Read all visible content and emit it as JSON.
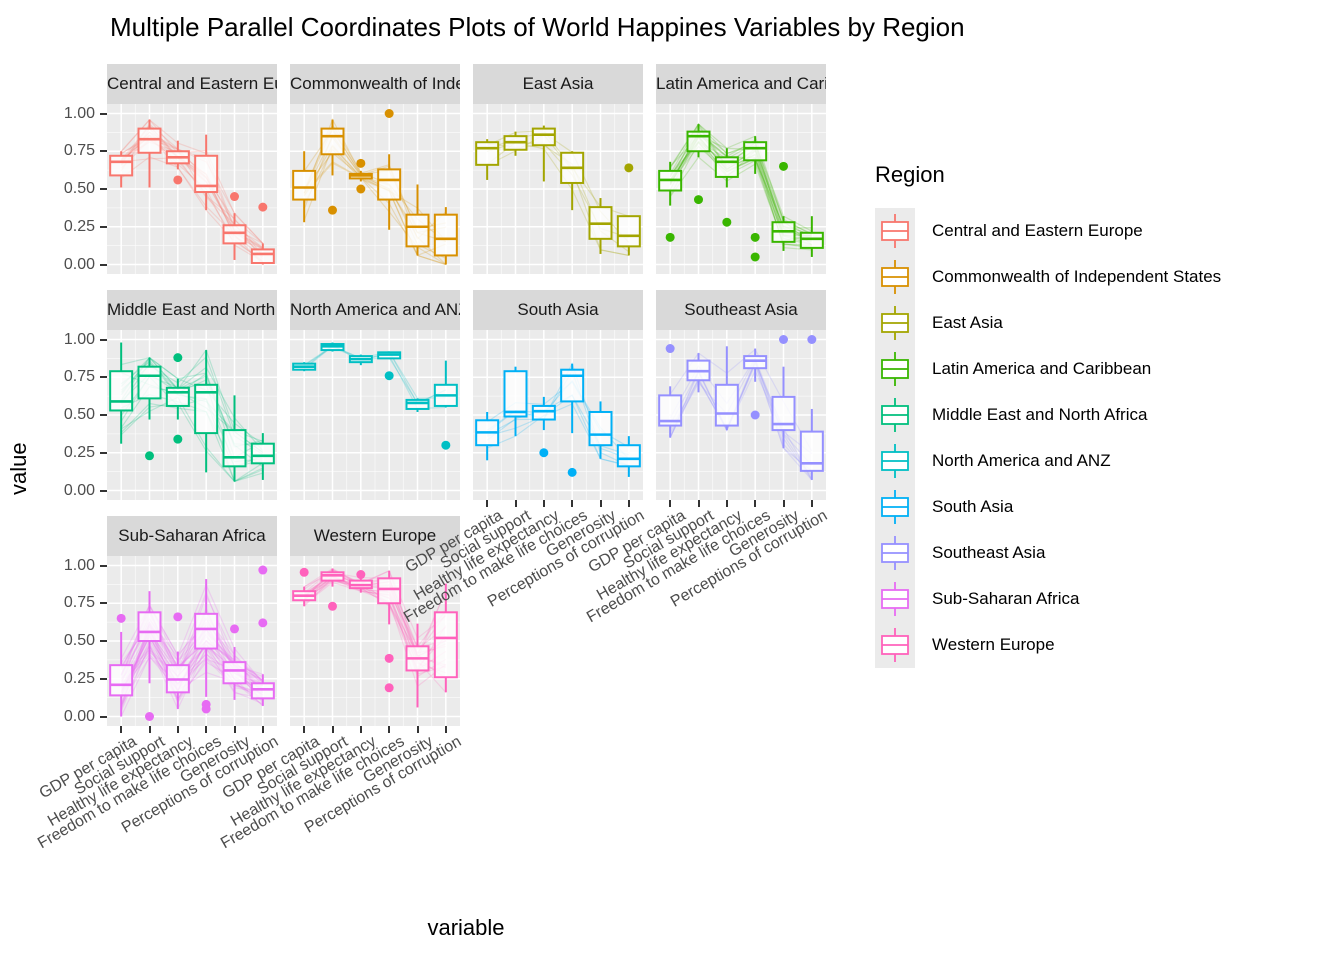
{
  "title": "Multiple Parallel Coordinates Plots of World Happines Variables by Region",
  "axes": {
    "x_title": "variable",
    "y_title": "value",
    "y_ticks": [
      {
        "label": "1.00",
        "value": 1.0
      },
      {
        "label": "0.75",
        "value": 0.75
      },
      {
        "label": "0.50",
        "value": 0.5
      },
      {
        "label": "0.25",
        "value": 0.25
      },
      {
        "label": "0.00",
        "value": 0.0
      }
    ]
  },
  "legend": {
    "title": "Region",
    "entries": [
      {
        "label": "Central and Eastern Europe",
        "color": "#F8766D"
      },
      {
        "label": "Commonwealth of Independent States",
        "color": "#D89000"
      },
      {
        "label": "East Asia",
        "color": "#A3A500"
      },
      {
        "label": "Latin America and Caribbean",
        "color": "#39B600"
      },
      {
        "label": "Middle East and North Africa",
        "color": "#00BF7D"
      },
      {
        "label": "North America and ANZ",
        "color": "#00BFC4"
      },
      {
        "label": "South Asia",
        "color": "#00B0F6"
      },
      {
        "label": "Southeast Asia",
        "color": "#9590FF"
      },
      {
        "label": "Sub-Saharan Africa",
        "color": "#E76BF3"
      },
      {
        "label": "Western Europe",
        "color": "#FF62BC"
      }
    ]
  },
  "style": {
    "panel_bg": "#EBEBEB",
    "strip_bg": "#D9D9D9",
    "grid_color": "#FFFFFF",
    "tick_color": "#333333",
    "tick_label_color": "#4D4D4D"
  },
  "chart_data": {
    "type": "bar",
    "subtype": "faceted-boxplots-with-parallel-coordinate-lines",
    "ylim": [
      0,
      1
    ],
    "variables": [
      "GDP per capita",
      "Social support",
      "Healthy life expectancy",
      "Freedom to make life choices",
      "Generosity",
      "Perceptions of corruption"
    ],
    "facets": [
      {
        "region": "Central and Eastern Europe",
        "color": "#F8766D",
        "row": 0,
        "col": 0,
        "line_count": 17,
        "boxes": [
          {
            "var": "GDP per capita",
            "w_lo": 0.51,
            "q1": 0.59,
            "med": 0.68,
            "q3": 0.72,
            "w_hi": 0.75,
            "outliers": []
          },
          {
            "var": "Social support",
            "w_lo": 0.51,
            "q1": 0.74,
            "med": 0.83,
            "q3": 0.9,
            "w_hi": 0.96,
            "outliers": []
          },
          {
            "var": "Healthy life expectancy",
            "w_lo": 0.63,
            "q1": 0.67,
            "med": 0.71,
            "q3": 0.75,
            "w_hi": 0.82,
            "outliers": [
              0.56
            ]
          },
          {
            "var": "Freedom to make life choices",
            "w_lo": 0.36,
            "q1": 0.48,
            "med": 0.52,
            "q3": 0.72,
            "w_hi": 0.86,
            "outliers": []
          },
          {
            "var": "Generosity",
            "w_lo": 0.03,
            "q1": 0.14,
            "med": 0.21,
            "q3": 0.26,
            "w_hi": 0.34,
            "outliers": [
              0.45
            ]
          },
          {
            "var": "Perceptions of corruption",
            "w_lo": 0.0,
            "q1": 0.01,
            "med": 0.07,
            "q3": 0.1,
            "w_hi": 0.14,
            "outliers": [
              0.38
            ]
          }
        ]
      },
      {
        "region": "Commonwealth of Independent States",
        "color": "#D89000",
        "row": 0,
        "col": 1,
        "line_count": 12,
        "boxes": [
          {
            "var": "GDP per capita",
            "w_lo": 0.28,
            "q1": 0.43,
            "med": 0.51,
            "q3": 0.62,
            "w_hi": 0.75,
            "outliers": []
          },
          {
            "var": "Social support",
            "w_lo": 0.59,
            "q1": 0.73,
            "med": 0.85,
            "q3": 0.9,
            "w_hi": 0.96,
            "outliers": [
              0.36
            ]
          },
          {
            "var": "Healthy life expectancy",
            "w_lo": 0.55,
            "q1": 0.57,
            "med": 0.59,
            "q3": 0.6,
            "w_hi": 0.62,
            "outliers": [
              0.67,
              0.5
            ]
          },
          {
            "var": "Freedom to make life choices",
            "w_lo": 0.23,
            "q1": 0.43,
            "med": 0.56,
            "q3": 0.63,
            "w_hi": 0.73,
            "outliers": [
              1.0
            ]
          },
          {
            "var": "Generosity",
            "w_lo": 0.06,
            "q1": 0.12,
            "med": 0.25,
            "q3": 0.33,
            "w_hi": 0.53,
            "outliers": []
          },
          {
            "var": "Perceptions of corruption",
            "w_lo": 0.0,
            "q1": 0.06,
            "med": 0.17,
            "q3": 0.33,
            "w_hi": 0.38,
            "outliers": []
          }
        ]
      },
      {
        "region": "East Asia",
        "color": "#A3A500",
        "row": 0,
        "col": 2,
        "line_count": 6,
        "boxes": [
          {
            "var": "GDP per capita",
            "w_lo": 0.56,
            "q1": 0.66,
            "med": 0.77,
            "q3": 0.81,
            "w_hi": 0.83,
            "outliers": []
          },
          {
            "var": "Social support",
            "w_lo": 0.72,
            "q1": 0.76,
            "med": 0.81,
            "q3": 0.85,
            "w_hi": 0.88,
            "outliers": []
          },
          {
            "var": "Healthy life expectancy",
            "w_lo": 0.55,
            "q1": 0.79,
            "med": 0.86,
            "q3": 0.9,
            "w_hi": 0.92,
            "outliers": []
          },
          {
            "var": "Freedom to make life choices",
            "w_lo": 0.36,
            "q1": 0.54,
            "med": 0.64,
            "q3": 0.74,
            "w_hi": 0.75,
            "outliers": []
          },
          {
            "var": "Generosity",
            "w_lo": 0.07,
            "q1": 0.17,
            "med": 0.27,
            "q3": 0.38,
            "w_hi": 0.44,
            "outliers": []
          },
          {
            "var": "Perceptions of corruption",
            "w_lo": 0.06,
            "q1": 0.12,
            "med": 0.19,
            "q3": 0.32,
            "w_hi": 0.32,
            "outliers": [
              0.64
            ]
          }
        ]
      },
      {
        "region": "Latin America and Caribbean",
        "color": "#39B600",
        "row": 0,
        "col": 3,
        "line_count": 20,
        "boxes": [
          {
            "var": "GDP per capita",
            "w_lo": 0.39,
            "q1": 0.49,
            "med": 0.56,
            "q3": 0.62,
            "w_hi": 0.68,
            "outliers": [
              0.18
            ]
          },
          {
            "var": "Social support",
            "w_lo": 0.71,
            "q1": 0.75,
            "med": 0.85,
            "q3": 0.88,
            "w_hi": 0.93,
            "outliers": [
              0.43
            ]
          },
          {
            "var": "Healthy life expectancy",
            "w_lo": 0.51,
            "q1": 0.58,
            "med": 0.68,
            "q3": 0.71,
            "w_hi": 0.77,
            "outliers": [
              0.28
            ]
          },
          {
            "var": "Freedom to make life choices",
            "w_lo": 0.6,
            "q1": 0.69,
            "med": 0.77,
            "q3": 0.81,
            "w_hi": 0.85,
            "outliers": [
              0.18,
              0.05
            ]
          },
          {
            "var": "Generosity",
            "w_lo": 0.09,
            "q1": 0.15,
            "med": 0.22,
            "q3": 0.28,
            "w_hi": 0.32,
            "outliers": [
              0.65
            ]
          },
          {
            "var": "Perceptions of corruption",
            "w_lo": 0.05,
            "q1": 0.11,
            "med": 0.17,
            "q3": 0.21,
            "w_hi": 0.32,
            "outliers": []
          }
        ]
      },
      {
        "region": "Middle East and North Africa",
        "color": "#00BF7D",
        "row": 1,
        "col": 0,
        "line_count": 17,
        "boxes": [
          {
            "var": "GDP per capita",
            "w_lo": 0.31,
            "q1": 0.53,
            "med": 0.59,
            "q3": 0.79,
            "w_hi": 0.98,
            "outliers": []
          },
          {
            "var": "Social support",
            "w_lo": 0.47,
            "q1": 0.61,
            "med": 0.76,
            "q3": 0.82,
            "w_hi": 0.88,
            "outliers": [
              0.23
            ]
          },
          {
            "var": "Healthy life expectancy",
            "w_lo": 0.47,
            "q1": 0.56,
            "med": 0.65,
            "q3": 0.68,
            "w_hi": 0.74,
            "outliers": [
              0.88,
              0.34
            ]
          },
          {
            "var": "Freedom to make life choices",
            "w_lo": 0.12,
            "q1": 0.38,
            "med": 0.65,
            "q3": 0.7,
            "w_hi": 0.93,
            "outliers": []
          },
          {
            "var": "Generosity",
            "w_lo": 0.06,
            "q1": 0.16,
            "med": 0.22,
            "q3": 0.4,
            "w_hi": 0.63,
            "outliers": []
          },
          {
            "var": "Perceptions of corruption",
            "w_lo": 0.07,
            "q1": 0.18,
            "med": 0.23,
            "q3": 0.31,
            "w_hi": 0.38,
            "outliers": []
          }
        ]
      },
      {
        "region": "North America and ANZ",
        "color": "#00BFC4",
        "row": 1,
        "col": 1,
        "line_count": 4,
        "boxes": [
          {
            "var": "GDP per capita",
            "w_lo": 0.79,
            "q1": 0.8,
            "med": 0.82,
            "q3": 0.84,
            "w_hi": 0.85,
            "outliers": []
          },
          {
            "var": "Social support",
            "w_lo": 0.92,
            "q1": 0.93,
            "med": 0.955,
            "q3": 0.97,
            "w_hi": 0.98,
            "outliers": []
          },
          {
            "var": "Healthy life expectancy",
            "w_lo": 0.83,
            "q1": 0.85,
            "med": 0.87,
            "q3": 0.89,
            "w_hi": 0.9,
            "outliers": []
          },
          {
            "var": "Freedom to make life choices",
            "w_lo": 0.87,
            "q1": 0.875,
            "med": 0.9,
            "q3": 0.915,
            "w_hi": 0.92,
            "outliers": [
              0.76
            ]
          },
          {
            "var": "Generosity",
            "w_lo": 0.52,
            "q1": 0.54,
            "med": 0.58,
            "q3": 0.6,
            "w_hi": 0.61,
            "outliers": []
          },
          {
            "var": "Perceptions of corruption",
            "w_lo": 0.55,
            "q1": 0.56,
            "med": 0.63,
            "q3": 0.7,
            "w_hi": 0.86,
            "outliers": [
              0.3
            ]
          }
        ]
      },
      {
        "region": "South Asia",
        "color": "#00B0F6",
        "row": 1,
        "col": 2,
        "line_count": 7,
        "boxes": [
          {
            "var": "GDP per capita",
            "w_lo": 0.2,
            "q1": 0.3,
            "med": 0.385,
            "q3": 0.465,
            "w_hi": 0.52,
            "outliers": []
          },
          {
            "var": "Social support",
            "w_lo": 0.36,
            "q1": 0.49,
            "med": 0.52,
            "q3": 0.79,
            "w_hi": 0.82,
            "outliers": []
          },
          {
            "var": "Healthy life expectancy",
            "w_lo": 0.4,
            "q1": 0.47,
            "med": 0.525,
            "q3": 0.56,
            "w_hi": 0.62,
            "outliers": [
              0.25
            ]
          },
          {
            "var": "Freedom to make life choices",
            "w_lo": 0.38,
            "q1": 0.59,
            "med": 0.76,
            "q3": 0.8,
            "w_hi": 0.84,
            "outliers": [
              0.12
            ]
          },
          {
            "var": "Generosity",
            "w_lo": 0.21,
            "q1": 0.3,
            "med": 0.37,
            "q3": 0.52,
            "w_hi": 0.59,
            "outliers": []
          },
          {
            "var": "Perceptions of corruption",
            "w_lo": 0.09,
            "q1": 0.16,
            "med": 0.21,
            "q3": 0.3,
            "w_hi": 0.36,
            "outliers": []
          }
        ]
      },
      {
        "region": "Southeast Asia",
        "color": "#9590FF",
        "row": 1,
        "col": 3,
        "line_count": 9,
        "boxes": [
          {
            "var": "GDP per capita",
            "w_lo": 0.35,
            "q1": 0.43,
            "med": 0.46,
            "q3": 0.63,
            "w_hi": 0.69,
            "outliers": [
              0.94
            ]
          },
          {
            "var": "Social support",
            "w_lo": 0.65,
            "q1": 0.73,
            "med": 0.79,
            "q3": 0.86,
            "w_hi": 0.91,
            "outliers": []
          },
          {
            "var": "Healthy life expectancy",
            "w_lo": 0.4,
            "q1": 0.43,
            "med": 0.51,
            "q3": 0.7,
            "w_hi": 0.955,
            "outliers": []
          },
          {
            "var": "Freedom to make life choices",
            "w_lo": 0.72,
            "q1": 0.81,
            "med": 0.86,
            "q3": 0.89,
            "w_hi": 0.94,
            "outliers": [
              0.5
            ]
          },
          {
            "var": "Generosity",
            "w_lo": 0.28,
            "q1": 0.4,
            "med": 0.44,
            "q3": 0.62,
            "w_hi": 0.82,
            "outliers": [
              1.0
            ]
          },
          {
            "var": "Perceptions of corruption",
            "w_lo": 0.07,
            "q1": 0.13,
            "med": 0.18,
            "q3": 0.39,
            "w_hi": 0.54,
            "outliers": [
              1.0
            ]
          }
        ]
      },
      {
        "region": "Sub-Saharan Africa",
        "color": "#E76BF3",
        "row": 2,
        "col": 0,
        "line_count": 36,
        "boxes": [
          {
            "var": "GDP per capita",
            "w_lo": 0.0,
            "q1": 0.14,
            "med": 0.21,
            "q3": 0.34,
            "w_hi": 0.56,
            "outliers": [
              0.65
            ]
          },
          {
            "var": "Social support",
            "w_lo": 0.22,
            "q1": 0.5,
            "med": 0.56,
            "q3": 0.69,
            "w_hi": 0.83,
            "outliers": [
              0.0
            ]
          },
          {
            "var": "Healthy life expectancy",
            "w_lo": 0.05,
            "q1": 0.16,
            "med": 0.245,
            "q3": 0.34,
            "w_hi": 0.43,
            "outliers": [
              0.66
            ]
          },
          {
            "var": "Freedom to make life choices",
            "w_lo": 0.13,
            "q1": 0.45,
            "med": 0.58,
            "q3": 0.68,
            "w_hi": 0.91,
            "outliers": [
              0.08,
              0.05
            ]
          },
          {
            "var": "Generosity",
            "w_lo": 0.11,
            "q1": 0.22,
            "med": 0.305,
            "q3": 0.36,
            "w_hi": 0.46,
            "outliers": [
              0.58
            ]
          },
          {
            "var": "Perceptions of corruption",
            "w_lo": 0.07,
            "q1": 0.12,
            "med": 0.18,
            "q3": 0.22,
            "w_hi": 0.28,
            "outliers": [
              0.97,
              0.62
            ]
          }
        ]
      },
      {
        "region": "Western Europe",
        "color": "#FF62BC",
        "row": 2,
        "col": 1,
        "line_count": 21,
        "boxes": [
          {
            "var": "GDP per capita",
            "w_lo": 0.73,
            "q1": 0.77,
            "med": 0.8,
            "q3": 0.83,
            "w_hi": 0.86,
            "outliers": [
              0.955
            ]
          },
          {
            "var": "Social support",
            "w_lo": 0.86,
            "q1": 0.9,
            "med": 0.935,
            "q3": 0.955,
            "w_hi": 0.98,
            "outliers": [
              0.73
            ]
          },
          {
            "var": "Healthy life expectancy",
            "w_lo": 0.82,
            "q1": 0.85,
            "med": 0.87,
            "q3": 0.9,
            "w_hi": 0.92,
            "outliers": [
              0.94
            ]
          },
          {
            "var": "Freedom to make life choices",
            "w_lo": 0.61,
            "q1": 0.75,
            "med": 0.845,
            "q3": 0.915,
            "w_hi": 0.965,
            "outliers": [
              0.385,
              0.19
            ]
          },
          {
            "var": "Generosity",
            "w_lo": 0.06,
            "q1": 0.305,
            "med": 0.385,
            "q3": 0.465,
            "w_hi": 0.615,
            "outliers": []
          },
          {
            "var": "Perceptions of corruption",
            "w_lo": 0.16,
            "q1": 0.26,
            "med": 0.52,
            "q3": 0.69,
            "w_hi": 0.88,
            "outliers": []
          }
        ]
      }
    ]
  }
}
